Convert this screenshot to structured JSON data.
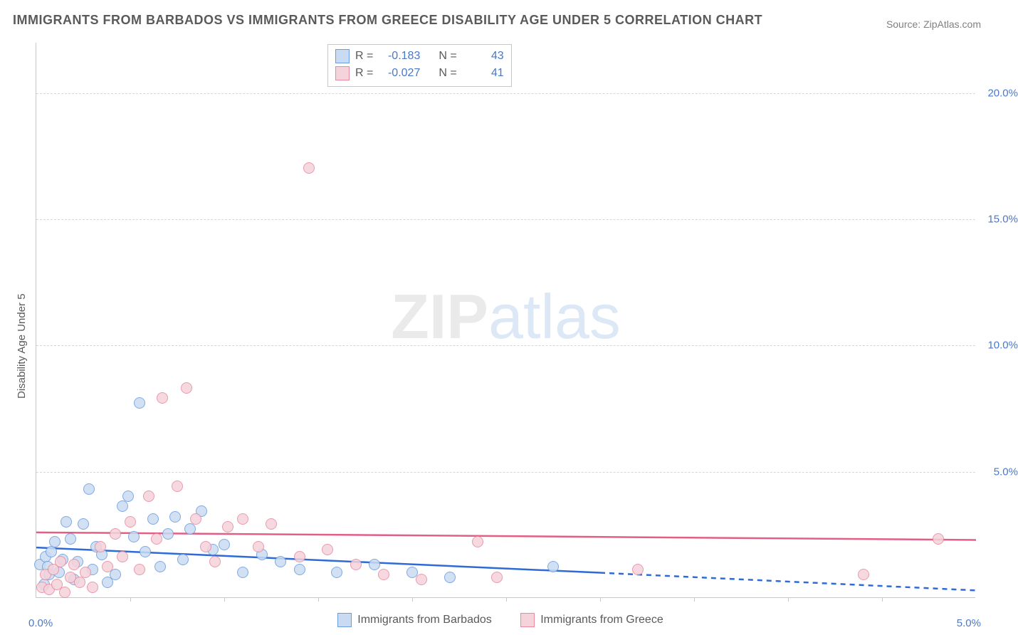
{
  "title": "IMMIGRANTS FROM BARBADOS VS IMMIGRANTS FROM GREECE DISABILITY AGE UNDER 5 CORRELATION CHART",
  "source": "Source: ZipAtlas.com",
  "watermark_zip": "ZIP",
  "watermark_atlas": "atlas",
  "y_axis_title": "Disability Age Under 5",
  "chart": {
    "type": "scatter",
    "background_color": "#ffffff",
    "grid_color": "#d6d6d6",
    "axis_color": "#c8c8c8",
    "tick_label_color": "#4a78c8",
    "text_color": "#5a5a5a",
    "xlim": [
      0,
      5.0
    ],
    "ylim": [
      0,
      22.0
    ],
    "y_ticks": [
      5.0,
      10.0,
      15.0,
      20.0
    ],
    "y_tick_labels": [
      "5.0%",
      "10.0%",
      "15.0%",
      "20.0%"
    ],
    "x_ticks": [
      0.5,
      1.0,
      1.5,
      2.0,
      2.5,
      3.0,
      3.5,
      4.0,
      4.5
    ],
    "x_left_label": "0.0%",
    "x_right_label": "5.0%",
    "marker_radius": 8,
    "marker_stroke_width": 1.5,
    "marker_fill_opacity": 0.25,
    "series": [
      {
        "key": "barbados",
        "label": "Immigrants from Barbados",
        "fill": "#c9dbf2",
        "stroke": "#6b9be0",
        "line_color": "#2e6bd6",
        "R_label": "R = ",
        "R": "-0.183",
        "N_label": "N = ",
        "N": "43",
        "trend": {
          "x1": 0.0,
          "y1": 2.0,
          "x2": 3.0,
          "y2": 1.0,
          "dash_from_x": 3.0,
          "dash_to_x": 5.0,
          "dash_to_y": 0.3
        },
        "points": [
          [
            0.02,
            1.3
          ],
          [
            0.04,
            0.5
          ],
          [
            0.05,
            1.6
          ],
          [
            0.06,
            1.2
          ],
          [
            0.07,
            0.9
          ],
          [
            0.08,
            1.8
          ],
          [
            0.1,
            2.2
          ],
          [
            0.12,
            1.0
          ],
          [
            0.14,
            1.5
          ],
          [
            0.16,
            3.0
          ],
          [
            0.18,
            2.3
          ],
          [
            0.2,
            0.7
          ],
          [
            0.22,
            1.4
          ],
          [
            0.25,
            2.9
          ],
          [
            0.28,
            4.3
          ],
          [
            0.3,
            1.1
          ],
          [
            0.32,
            2.0
          ],
          [
            0.35,
            1.7
          ],
          [
            0.38,
            0.6
          ],
          [
            0.42,
            0.9
          ],
          [
            0.46,
            3.6
          ],
          [
            0.49,
            4.0
          ],
          [
            0.52,
            2.4
          ],
          [
            0.55,
            7.7
          ],
          [
            0.58,
            1.8
          ],
          [
            0.62,
            3.1
          ],
          [
            0.66,
            1.2
          ],
          [
            0.7,
            2.5
          ],
          [
            0.74,
            3.2
          ],
          [
            0.78,
            1.5
          ],
          [
            0.82,
            2.7
          ],
          [
            0.88,
            3.4
          ],
          [
            0.94,
            1.9
          ],
          [
            1.0,
            2.1
          ],
          [
            1.1,
            1.0
          ],
          [
            1.2,
            1.7
          ],
          [
            1.3,
            1.4
          ],
          [
            1.4,
            1.1
          ],
          [
            1.6,
            1.0
          ],
          [
            1.8,
            1.3
          ],
          [
            2.0,
            1.0
          ],
          [
            2.2,
            0.8
          ],
          [
            2.75,
            1.2
          ]
        ]
      },
      {
        "key": "greece",
        "label": "Immigrants from Greece",
        "fill": "#f5d3db",
        "stroke": "#e8899e",
        "line_color": "#e15f85",
        "R_label": "R = ",
        "R": "-0.027",
        "N_label": "N = ",
        "N": "41",
        "trend": {
          "x1": 0.0,
          "y1": 2.6,
          "x2": 5.0,
          "y2": 2.3,
          "dash_from_x": 5.0,
          "dash_to_x": 5.0,
          "dash_to_y": 2.3
        },
        "points": [
          [
            0.03,
            0.4
          ],
          [
            0.05,
            0.9
          ],
          [
            0.07,
            0.3
          ],
          [
            0.09,
            1.1
          ],
          [
            0.11,
            0.5
          ],
          [
            0.13,
            1.4
          ],
          [
            0.15,
            0.2
          ],
          [
            0.18,
            0.8
          ],
          [
            0.2,
            1.3
          ],
          [
            0.23,
            0.6
          ],
          [
            0.26,
            1.0
          ],
          [
            0.3,
            0.4
          ],
          [
            0.34,
            2.0
          ],
          [
            0.38,
            1.2
          ],
          [
            0.42,
            2.5
          ],
          [
            0.46,
            1.6
          ],
          [
            0.5,
            3.0
          ],
          [
            0.55,
            1.1
          ],
          [
            0.6,
            4.0
          ],
          [
            0.64,
            2.3
          ],
          [
            0.67,
            7.9
          ],
          [
            0.75,
            4.4
          ],
          [
            0.8,
            8.3
          ],
          [
            0.85,
            3.1
          ],
          [
            0.9,
            2.0
          ],
          [
            0.95,
            1.4
          ],
          [
            1.02,
            2.8
          ],
          [
            1.1,
            3.1
          ],
          [
            1.18,
            2.0
          ],
          [
            1.25,
            2.9
          ],
          [
            1.4,
            1.6
          ],
          [
            1.45,
            17.0
          ],
          [
            1.55,
            1.9
          ],
          [
            1.7,
            1.3
          ],
          [
            1.85,
            0.9
          ],
          [
            2.05,
            0.7
          ],
          [
            2.35,
            2.2
          ],
          [
            2.45,
            0.8
          ],
          [
            3.2,
            1.1
          ],
          [
            4.4,
            0.9
          ],
          [
            4.8,
            2.3
          ]
        ]
      }
    ]
  }
}
